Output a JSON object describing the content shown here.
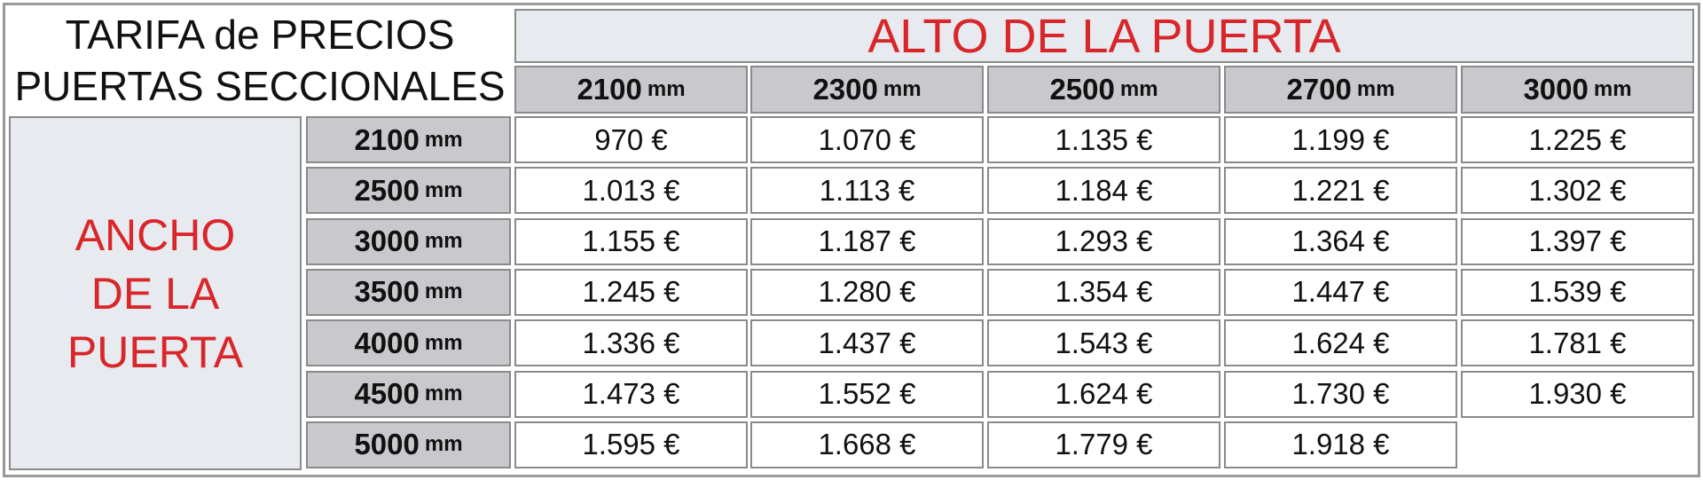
{
  "header": {
    "title_lines": [
      "TARIFA de PRECIOS",
      "PUERTAS SECCIONALES"
    ],
    "height_label": "ALTO DE LA PUERTA",
    "width_label_lines": [
      "ANCHO",
      "DE LA",
      "PUERTA"
    ]
  },
  "table": {
    "columns": [
      {
        "value": "2100",
        "unit": "mm"
      },
      {
        "value": "2300",
        "unit": "mm"
      },
      {
        "value": "2500",
        "unit": "mm"
      },
      {
        "value": "2700",
        "unit": "mm"
      },
      {
        "value": "3000",
        "unit": "mm"
      }
    ],
    "row_headers": [
      {
        "value": "2100",
        "unit": "mm"
      },
      {
        "value": "2500",
        "unit": "mm"
      },
      {
        "value": "3000",
        "unit": "mm"
      },
      {
        "value": "3500",
        "unit": "mm"
      },
      {
        "value": "4000",
        "unit": "mm"
      },
      {
        "value": "4500",
        "unit": "mm"
      },
      {
        "value": "5000",
        "unit": "mm"
      }
    ],
    "rows": [
      [
        "970 €",
        "1.070 €",
        "1.135 €",
        "1.199 €",
        "1.225 €"
      ],
      [
        "1.013 €",
        "1.113 €",
        "1.184 €",
        "1.221 €",
        "1.302 €"
      ],
      [
        "1.155 €",
        "1.187 €",
        "1.293 €",
        "1.364 €",
        "1.397 €"
      ],
      [
        "1.245 €",
        "1.280 €",
        "1.354 €",
        "1.447 €",
        "1.539 €"
      ],
      [
        "1.336 €",
        "1.437 €",
        "1.543 €",
        "1.624 €",
        "1.781 €"
      ],
      [
        "1.473 €",
        "1.552 €",
        "1.624 €",
        "1.730 €",
        "1.930 €"
      ],
      [
        "1.595 €",
        "1.668 €",
        "1.779 €",
        "1.918 €"
      ]
    ]
  }
}
